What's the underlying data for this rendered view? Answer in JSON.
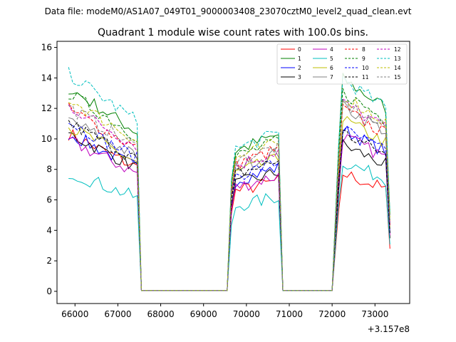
{
  "chart_data": {
    "type": "line",
    "suptitle": "Data file: modeM0/AS1A07_049T01_9000003408_23070cztM0_level2_quad_clean.evt",
    "title": "Quadrant 1 module wise count rates with 100.0s bins.",
    "xlabel": "",
    "ylabel": "",
    "x_offset_label": "+3.157e8",
    "xlim": [
      65580,
      73810
    ],
    "ylim": [
      -0.8,
      16.4
    ],
    "xticks": [
      66000,
      67000,
      68000,
      69000,
      70000,
      71000,
      72000,
      73000
    ],
    "yticks": [
      0,
      2,
      4,
      6,
      8,
      10,
      12,
      14,
      16
    ],
    "legend_position": "upper-right",
    "gti": [
      {
        "start": 65850,
        "end": 67450
      },
      {
        "start": 69650,
        "end": 70750
      },
      {
        "start": 72150,
        "end": 73350
      }
    ],
    "gap_points": [
      {
        "x": 67550,
        "v": 0.05
      },
      {
        "x": 68000,
        "v": 0.05
      },
      {
        "x": 69000,
        "v": 0.05
      },
      {
        "x": 69550,
        "v": 0.05
      },
      {
        "x": 70850,
        "v": 0.05
      },
      {
        "x": 71500,
        "v": 0.05
      },
      {
        "x": 72000,
        "v": 0.05
      }
    ],
    "series": [
      {
        "name": "0",
        "color": "#ff0000",
        "dash": false,
        "levels": [
          9.0,
          6.8,
          7.0
        ]
      },
      {
        "name": "1",
        "color": "#008000",
        "dash": false,
        "levels": [
          11.6,
          9.6,
          12.6
        ]
      },
      {
        "name": "2",
        "color": "#0000ff",
        "dash": false,
        "levels": [
          9.0,
          7.6,
          9.6
        ]
      },
      {
        "name": "3",
        "color": "#000000",
        "dash": false,
        "levels": [
          9.0,
          7.3,
          8.7
        ]
      },
      {
        "name": "4",
        "color": "#bf00bf",
        "dash": false,
        "levels": [
          8.6,
          7.1,
          9.2
        ]
      },
      {
        "name": "5",
        "color": "#00bfbf",
        "dash": false,
        "levels": [
          6.8,
          5.8,
          7.7
        ]
      },
      {
        "name": "6",
        "color": "#bfbf00",
        "dash": false,
        "levels": [
          9.4,
          8.1,
          10.2
        ]
      },
      {
        "name": "7",
        "color": "#808080",
        "dash": false,
        "levels": [
          9.8,
          8.5,
          11.0
        ]
      },
      {
        "name": "8",
        "color": "#ff0000",
        "dash": true,
        "levels": [
          10.4,
          8.7,
          10.8
        ]
      },
      {
        "name": "9",
        "color": "#008000",
        "dash": true,
        "levels": [
          11.3,
          9.2,
          11.8
        ]
      },
      {
        "name": "10",
        "color": "#0000ff",
        "dash": true,
        "levels": [
          9.7,
          7.9,
          9.6
        ]
      },
      {
        "name": "11",
        "color": "#000000",
        "dash": true,
        "levels": [
          9.6,
          8.0,
          9.4
        ]
      },
      {
        "name": "12",
        "color": "#bf00bf",
        "dash": true,
        "levels": [
          10.6,
          8.6,
          11.2
        ]
      },
      {
        "name": "13",
        "color": "#00bfbf",
        "dash": true,
        "levels": [
          12.4,
          9.7,
          12.6
        ]
      },
      {
        "name": "14",
        "color": "#bfbf00",
        "dash": true,
        "levels": [
          11.0,
          9.1,
          11.6
        ]
      },
      {
        "name": "15",
        "color": "#808080",
        "dash": true,
        "levels": [
          10.5,
          8.9,
          11.2
        ]
      }
    ]
  }
}
